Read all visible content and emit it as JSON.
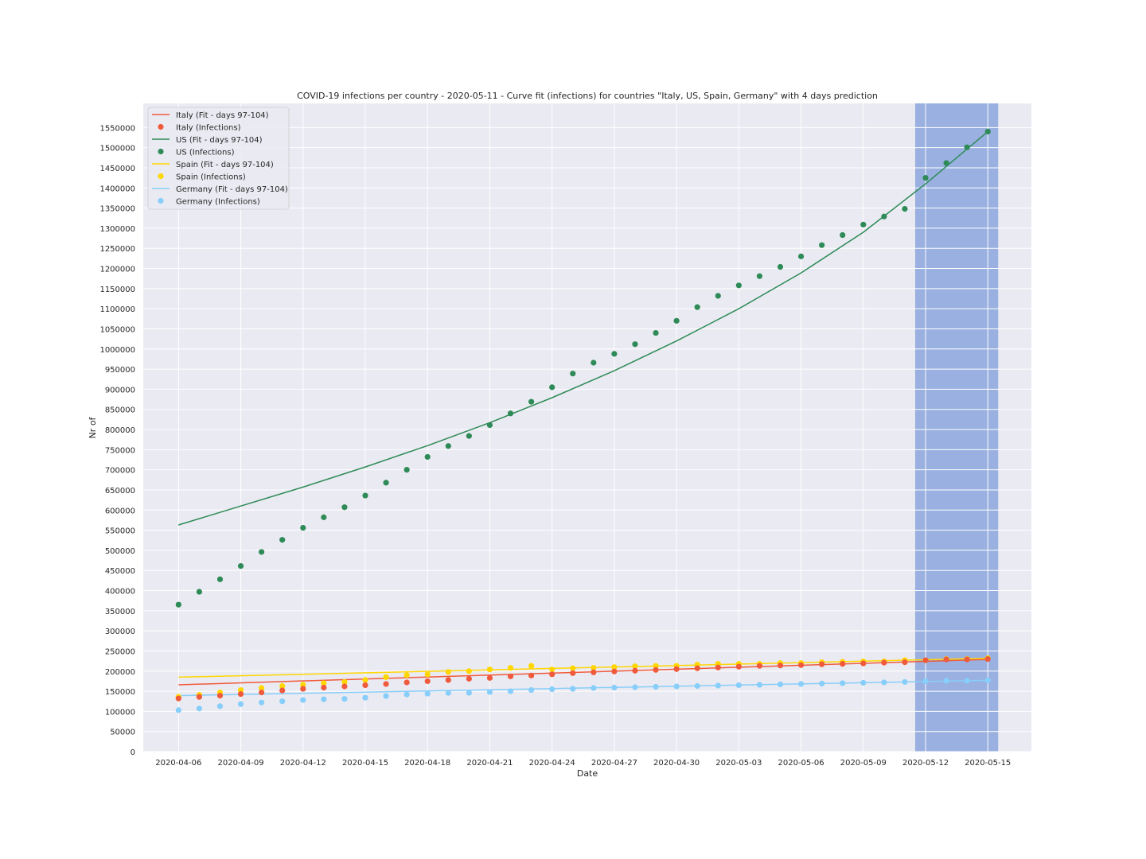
{
  "chart_data": {
    "type": "line",
    "title": "COVID-19 infections per country - 2020-05-11 - Curve fit (infections) for countries \"Italy, US, Spain, Germany\" with 4 days prediction",
    "xlabel": "Date",
    "ylabel": "Nr of",
    "x_start_date": "2020-04-06",
    "x_tick_labels": [
      "2020-04-06",
      "2020-04-09",
      "2020-04-12",
      "2020-04-15",
      "2020-04-18",
      "2020-04-21",
      "2020-04-24",
      "2020-04-27",
      "2020-04-30",
      "2020-05-03",
      "2020-05-06",
      "2020-05-09",
      "2020-05-12",
      "2020-05-15"
    ],
    "x_tick_days": [
      0,
      3,
      6,
      9,
      12,
      15,
      18,
      21,
      24,
      27,
      30,
      33,
      36,
      39
    ],
    "xlim": [
      -1.7,
      41.1
    ],
    "ylim": [
      0,
      1610000
    ],
    "y_ticks": [
      0,
      50000,
      100000,
      150000,
      200000,
      250000,
      300000,
      350000,
      400000,
      450000,
      500000,
      550000,
      600000,
      650000,
      700000,
      750000,
      800000,
      850000,
      900000,
      950000,
      1000000,
      1050000,
      1100000,
      1150000,
      1200000,
      1250000,
      1300000,
      1350000,
      1400000,
      1450000,
      1500000,
      1550000
    ],
    "prediction_band": {
      "from": 35.5,
      "to": 39.5,
      "color": "#99b0e0"
    },
    "grid": true,
    "background": "#eaeaf2",
    "legend_position": "top-left",
    "legend": [
      {
        "label": "Italy (Fit - days 97-104)",
        "kind": "line",
        "color": "#f05a3c"
      },
      {
        "label": "Italy (Infections)",
        "kind": "point",
        "color": "#f05a3c"
      },
      {
        "label": "US (Fit - days 97-104)",
        "kind": "line",
        "color": "#2e8b57"
      },
      {
        "label": "US (Infections)",
        "kind": "point",
        "color": "#2e8b57"
      },
      {
        "label": "Spain (Fit - days 97-104)",
        "kind": "line",
        "color": "#ffd700"
      },
      {
        "label": "Spain (Infections)",
        "kind": "point",
        "color": "#ffd700"
      },
      {
        "label": "Germany (Fit - days 97-104)",
        "kind": "line",
        "color": "#87cefa"
      },
      {
        "label": "Germany (Infections)",
        "kind": "point",
        "color": "#87cefa"
      }
    ],
    "series": [
      {
        "name": "Spain (Fit - days 97-104)",
        "kind": "line",
        "color": "#ffd700",
        "x": [
          0,
          39
        ],
        "y": [
          185000,
          232000
        ]
      },
      {
        "name": "Italy (Fit - days 97-104)",
        "kind": "line",
        "color": "#f05a3c",
        "x": [
          0,
          39
        ],
        "y": [
          166000,
          229000
        ]
      },
      {
        "name": "Germany (Fit - days 97-104)",
        "kind": "line",
        "color": "#87cefa",
        "x": [
          0,
          39
        ],
        "y": [
          139000,
          177000
        ]
      },
      {
        "name": "US (Fit - days 97-104)",
        "kind": "line",
        "color": "#2e8b57",
        "x": [
          0,
          3,
          6,
          9,
          12,
          15,
          18,
          21,
          24,
          27,
          30,
          33,
          36,
          39
        ],
        "y": [
          563000,
          610000,
          657000,
          707000,
          760000,
          817000,
          879000,
          946000,
          1020000,
          1100000,
          1189000,
          1290000,
          1410000,
          1540000
        ]
      },
      {
        "name": "Spain (Infections)",
        "kind": "point",
        "color": "#ffd700",
        "x": [
          0,
          1,
          2,
          3,
          4,
          5,
          6,
          7,
          8,
          9,
          10,
          11,
          12,
          13,
          14,
          15,
          16,
          17,
          18,
          19,
          20,
          21,
          22,
          23,
          24,
          25,
          26,
          27,
          28,
          29,
          30,
          31,
          32,
          33,
          34,
          35,
          36,
          37,
          38,
          39
        ],
        "y": [
          136000,
          141000,
          147000,
          153000,
          158000,
          163000,
          166000,
          170000,
          173000,
          178000,
          185000,
          190000,
          192000,
          198000,
          200000,
          204000,
          208000,
          213000,
          204000,
          207000,
          208000,
          210000,
          212000,
          213000,
          213000,
          216000,
          218000,
          218000,
          218000,
          220000,
          220000,
          222000,
          223000,
          224000,
          224000,
          227000,
          227000,
          230000,
          230000,
          232000
        ]
      },
      {
        "name": "Italy (Infections)",
        "kind": "point",
        "color": "#f05a3c",
        "x": [
          0,
          1,
          2,
          3,
          4,
          5,
          6,
          7,
          8,
          9,
          10,
          11,
          12,
          13,
          14,
          15,
          16,
          17,
          18,
          19,
          20,
          21,
          22,
          23,
          24,
          25,
          26,
          27,
          28,
          29,
          30,
          31,
          32,
          33,
          34,
          35,
          36,
          37,
          38,
          39
        ],
        "y": [
          132000,
          136000,
          139000,
          143000,
          147000,
          152000,
          156000,
          159000,
          162000,
          165000,
          168000,
          172000,
          175000,
          178000,
          181000,
          183000,
          187000,
          189000,
          192000,
          195000,
          197000,
          199000,
          201000,
          203000,
          205000,
          207000,
          209000,
          211000,
          213000,
          214000,
          215000,
          217000,
          218000,
          219000,
          221000,
          222000,
          227000,
          229000,
          229000,
          230000
        ]
      },
      {
        "name": "Germany (Infections)",
        "kind": "point",
        "color": "#87cefa",
        "x": [
          0,
          1,
          2,
          3,
          4,
          5,
          6,
          7,
          8,
          9,
          10,
          11,
          12,
          13,
          14,
          15,
          16,
          17,
          18,
          19,
          20,
          21,
          22,
          23,
          24,
          25,
          26,
          27,
          28,
          29,
          30,
          31,
          32,
          33,
          34,
          35,
          36,
          37,
          38,
          39
        ],
        "y": [
          103000,
          107000,
          113000,
          118000,
          122000,
          125000,
          128000,
          130000,
          131000,
          134000,
          138000,
          142000,
          144000,
          146000,
          146000,
          148000,
          150000,
          153000,
          155000,
          156000,
          158000,
          159000,
          160000,
          161000,
          162000,
          163000,
          164000,
          165000,
          166000,
          167000,
          168000,
          169000,
          170000,
          171000,
          172000,
          173000,
          175000,
          176000,
          176000,
          177000
        ]
      },
      {
        "name": "US (Infections)",
        "kind": "point",
        "color": "#2e8b57",
        "x": [
          0,
          1,
          2,
          3,
          4,
          5,
          6,
          7,
          8,
          9,
          10,
          11,
          12,
          13,
          14,
          15,
          16,
          17,
          18,
          19,
          20,
          21,
          22,
          23,
          24,
          25,
          26,
          27,
          28,
          29,
          30,
          31,
          32,
          33,
          34,
          35,
          36,
          37,
          38,
          39
        ],
        "y": [
          365000,
          397000,
          428000,
          461000,
          496000,
          526000,
          556000,
          582000,
          607000,
          636000,
          668000,
          700000,
          732000,
          759000,
          784000,
          811000,
          840000,
          869000,
          905000,
          939000,
          966000,
          988000,
          1012000,
          1040000,
          1070000,
          1104000,
          1132000,
          1158000,
          1181000,
          1204000,
          1230000,
          1258000,
          1283000,
          1309000,
          1329000,
          1348000,
          1425000,
          1462000,
          1501000,
          1540000
        ]
      }
    ]
  }
}
